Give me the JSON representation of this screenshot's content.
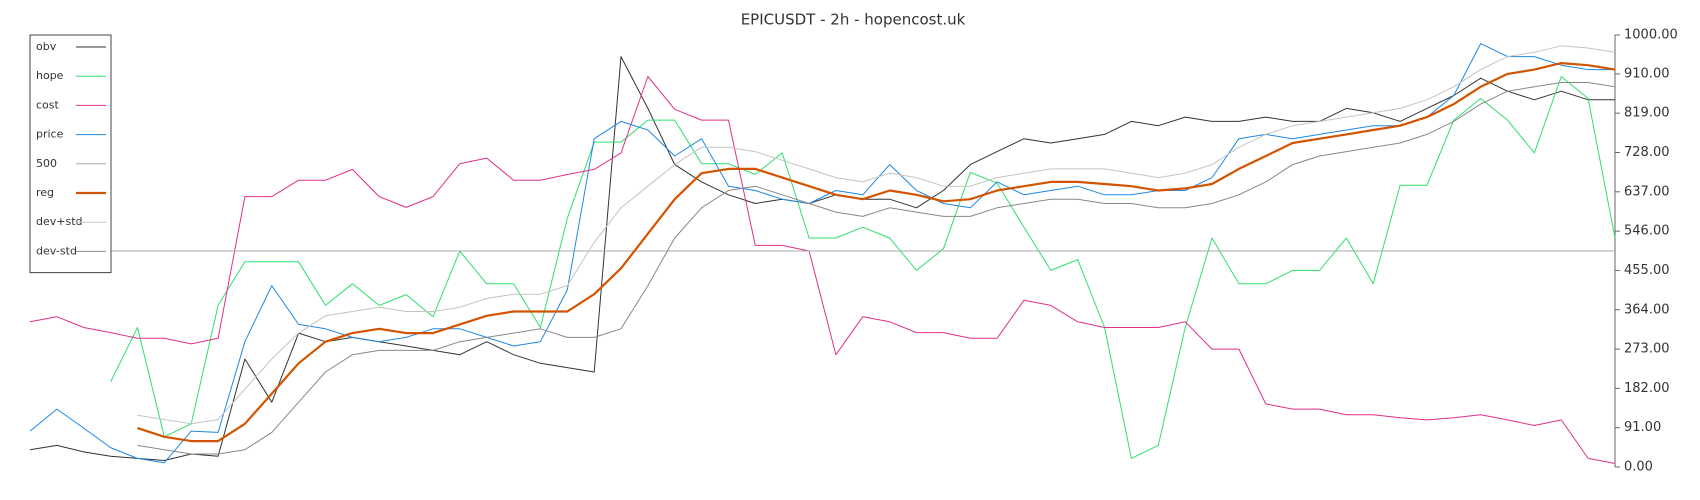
{
  "chart_data": {
    "type": "line",
    "title": "EPICUSDT - 2h - hopencost.uk",
    "categories": [
      null,
      null,
      null,
      null,
      null,
      null,
      null,
      null,
      null,
      null,
      null,
      null,
      null,
      null,
      null,
      null,
      null,
      null,
      null,
      null,
      null,
      null,
      null,
      null,
      null,
      null,
      null,
      null,
      null,
      null,
      null,
      null,
      null,
      null,
      null,
      null,
      null,
      null,
      null,
      null,
      null,
      null,
      null,
      null,
      null,
      null,
      null,
      null,
      null,
      null,
      null,
      null,
      null,
      null,
      null,
      null,
      null,
      null,
      null,
      null
    ],
    "ylim": [
      0,
      1000
    ],
    "yticks": [
      {
        "value": 0,
        "label": "0.00"
      },
      {
        "value": 91,
        "label": "91.00"
      },
      {
        "value": 182,
        "label": "182.00"
      },
      {
        "value": 273,
        "label": "273.00"
      },
      {
        "value": 364,
        "label": "364.00"
      },
      {
        "value": 455,
        "label": "455.00"
      },
      {
        "value": 546,
        "label": "546.00"
      },
      {
        "value": 637,
        "label": "637.00"
      },
      {
        "value": 728,
        "label": "728.00"
      },
      {
        "value": 819,
        "label": "819.00"
      },
      {
        "value": 910,
        "label": "910.00"
      },
      {
        "value": 1000,
        "label": "1000.00"
      }
    ],
    "legend": "upper left",
    "series": [
      {
        "name": "obv",
        "color": "#333333",
        "width": 1,
        "values": [
          40,
          50,
          35,
          25,
          20,
          15,
          30,
          25,
          250,
          150,
          310,
          290,
          300,
          290,
          280,
          270,
          260,
          290,
          260,
          240,
          230,
          220,
          950,
          830,
          700,
          660,
          630,
          610,
          620,
          610,
          630,
          620,
          620,
          600,
          640,
          700,
          730,
          760,
          750,
          760,
          770,
          800,
          790,
          810,
          800,
          800,
          810,
          800,
          800,
          830,
          820,
          800,
          830,
          860,
          900,
          870,
          850,
          870,
          850,
          850
        ]
      },
      {
        "name": "hope",
        "color": "#2ee06e",
        "width": 1,
        "values": [
          null,
          null,
          null,
          197,
          323,
          70,
          100,
          374,
          475,
          475,
          475,
          374,
          424,
          374,
          399,
          348,
          500,
          424,
          424,
          323,
          576,
          752,
          752,
          803,
          803,
          702,
          702,
          677,
          727,
          530,
          530,
          555,
          530,
          455,
          505,
          682,
          657,
          555,
          455,
          480,
          323,
          20,
          50,
          323,
          530,
          424,
          424,
          455,
          455,
          530,
          424,
          652,
          652,
          803,
          853,
          803,
          727,
          904,
          853,
          530
        ]
      },
      {
        "name": "cost",
        "color": "#e0308a",
        "width": 1,
        "values": [
          336,
          348,
          323,
          311,
          298,
          298,
          285,
          298,
          626,
          626,
          664,
          664,
          689,
          626,
          601,
          626,
          702,
          715,
          664,
          664,
          677,
          689,
          727,
          904,
          828,
          803,
          803,
          513,
          513,
          500,
          260,
          348,
          336,
          311,
          311,
          298,
          298,
          386,
          374,
          336,
          323,
          323,
          323,
          336,
          273,
          273,
          146,
          134,
          134,
          121,
          121,
          114,
          109,
          114,
          121,
          109,
          96,
          109,
          20,
          8
        ]
      },
      {
        "name": "price",
        "color": "#1e88e5",
        "width": 1,
        "values": [
          83,
          134,
          90,
          45,
          20,
          10,
          83,
          80,
          290,
          420,
          330,
          320,
          300,
          290,
          300,
          320,
          320,
          300,
          280,
          290,
          410,
          760,
          800,
          780,
          720,
          760,
          650,
          640,
          620,
          610,
          640,
          630,
          700,
          640,
          610,
          600,
          660,
          630,
          640,
          650,
          630,
          630,
          640,
          640,
          670,
          760,
          770,
          760,
          770,
          780,
          790,
          790,
          810,
          860,
          980,
          950,
          950,
          930,
          920,
          920
        ]
      },
      {
        "name": "500",
        "color": "#aaaaaa",
        "width": 1,
        "values": [
          500,
          500,
          500,
          500,
          500,
          500,
          500,
          500,
          500,
          500,
          500,
          500,
          500,
          500,
          500,
          500,
          500,
          500,
          500,
          500,
          500,
          500,
          500,
          500,
          500,
          500,
          500,
          500,
          500,
          500,
          500,
          500,
          500,
          500,
          500,
          500,
          500,
          500,
          500,
          500,
          500,
          500,
          500,
          500,
          500,
          500,
          500,
          500,
          500,
          500,
          500,
          500,
          500,
          500,
          500,
          500,
          500,
          500,
          500,
          500
        ]
      },
      {
        "name": "reg",
        "color": "#d35400",
        "width": 2.2,
        "values": [
          null,
          null,
          null,
          null,
          90,
          70,
          60,
          60,
          100,
          170,
          240,
          290,
          310,
          320,
          310,
          310,
          330,
          350,
          360,
          360,
          360,
          400,
          460,
          540,
          620,
          680,
          690,
          690,
          670,
          650,
          630,
          620,
          640,
          630,
          615,
          620,
          640,
          650,
          660,
          660,
          655,
          650,
          640,
          645,
          655,
          690,
          720,
          750,
          760,
          770,
          780,
          790,
          810,
          840,
          880,
          910,
          920,
          935,
          930,
          920
        ]
      },
      {
        "name": "dev+std",
        "color": "#c4c4c4",
        "width": 1,
        "values": [
          null,
          null,
          null,
          null,
          120,
          110,
          100,
          110,
          180,
          250,
          310,
          350,
          360,
          370,
          360,
          360,
          370,
          390,
          400,
          400,
          420,
          520,
          600,
          650,
          700,
          740,
          740,
          730,
          710,
          690,
          670,
          660,
          680,
          670,
          650,
          650,
          670,
          680,
          690,
          690,
          690,
          680,
          670,
          680,
          700,
          740,
          770,
          790,
          800,
          810,
          820,
          830,
          850,
          880,
          920,
          950,
          960,
          975,
          970,
          960
        ]
      },
      {
        "name": "dev-std",
        "color": "#888888",
        "width": 1,
        "values": [
          null,
          null,
          null,
          null,
          50,
          40,
          30,
          30,
          40,
          80,
          150,
          220,
          260,
          270,
          270,
          270,
          290,
          300,
          310,
          320,
          300,
          300,
          320,
          420,
          530,
          600,
          640,
          650,
          630,
          610,
          590,
          580,
          600,
          590,
          580,
          580,
          600,
          610,
          620,
          620,
          610,
          610,
          600,
          600,
          610,
          630,
          660,
          700,
          720,
          730,
          740,
          750,
          770,
          800,
          840,
          870,
          880,
          890,
          890,
          880
        ]
      }
    ]
  }
}
